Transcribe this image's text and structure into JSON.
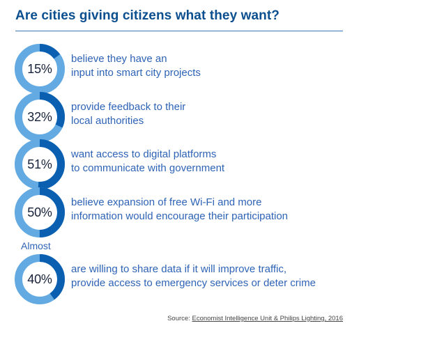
{
  "title": "Are cities giving citizens what they want?",
  "colors": {
    "accent_dark": "#0b5fb0",
    "accent_light": "#63a9e2",
    "title": "#0b4f8f",
    "body_text": "#2e63b6"
  },
  "chart_data": {
    "type": "pie",
    "title": "Are cities giving citizens what they want?",
    "items": [
      {
        "value": 15,
        "label_value": "15%",
        "lines": [
          "believe they have an",
          "input into smart city projects"
        ]
      },
      {
        "value": 32,
        "label_value": "32%",
        "lines": [
          "provide feedback to their",
          "local authorities"
        ]
      },
      {
        "value": 51,
        "label_value": "51%",
        "lines": [
          "want access to digital platforms",
          "to communicate with government"
        ]
      },
      {
        "value": 50,
        "label_value": "50%",
        "lines": [
          "believe expansion of free Wi-Fi and more",
          "information would encourage their participation"
        ]
      },
      {
        "value": 40,
        "label_value": "40%",
        "prefix": "Almost",
        "lines": [
          "are willing to share data if it will improve traffic,",
          "provide access to emergency services or deter crime"
        ]
      }
    ]
  },
  "source": {
    "label": "Source: ",
    "text": "Economist Intelligence Unit & Philips Lighting, 2016"
  }
}
